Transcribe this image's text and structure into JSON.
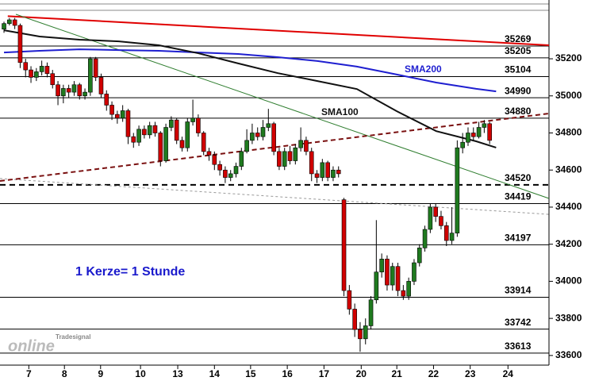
{
  "chart_data": {
    "type": "candlestick",
    "x": [
      0,
      1,
      2,
      3,
      4,
      5,
      6,
      7,
      8,
      9,
      10,
      11,
      12,
      13,
      14,
      15,
      16,
      17,
      18,
      19,
      20,
      21,
      22,
      23,
      24,
      25,
      26,
      27,
      28,
      29,
      30,
      31,
      32,
      33,
      34,
      35,
      36,
      37,
      38,
      39,
      40,
      41,
      42,
      43,
      44,
      45,
      46,
      47,
      48,
      49,
      50,
      51,
      52,
      53,
      54,
      55,
      56,
      57,
      58,
      59,
      60,
      61,
      62,
      63,
      64,
      65,
      66,
      67,
      68,
      69,
      70,
      71,
      72,
      73,
      74,
      75,
      76,
      77,
      78,
      79,
      80,
      81,
      82,
      83,
      84,
      85,
      86,
      87,
      88,
      89,
      90
    ],
    "open": [
      35360,
      35390,
      35410,
      35380,
      35180,
      35140,
      35100,
      35130,
      35160,
      35120,
      35060,
      35000,
      35040,
      35020,
      35060,
      35000,
      35020,
      35200,
      35100,
      35010,
      34950,
      34900,
      34880,
      34920,
      34780,
      34750,
      34820,
      34790,
      34840,
      34800,
      34650,
      34830,
      34870,
      34760,
      34720,
      34860,
      34880,
      34800,
      34700,
      34680,
      34630,
      34600,
      34560,
      34580,
      34620,
      34700,
      34760,
      34800,
      34780,
      34830,
      34850,
      34700,
      34620,
      34700,
      34650,
      34720,
      34760,
      34700,
      34580,
      34560,
      34640,
      34560,
      34600,
      34440,
      33950,
      33850,
      33740,
      33690,
      33760,
      33900,
      34050,
      34120,
      33980,
      34080,
      33950,
      33920,
      34000,
      34100,
      34180,
      34280,
      34400,
      34350,
      34300,
      34220,
      34260,
      34720,
      34750,
      34800,
      34780,
      34830,
      34850
    ],
    "high": [
      35400,
      35420,
      35420,
      35390,
      35200,
      35160,
      35150,
      35190,
      35180,
      35140,
      35080,
      35060,
      35060,
      35080,
      35070,
      35040,
      35210,
      35210,
      35120,
      35030,
      34970,
      34920,
      34950,
      34930,
      34800,
      34840,
      34840,
      34860,
      34860,
      34810,
      34850,
      34890,
      34880,
      34780,
      34880,
      34980,
      34900,
      34810,
      34720,
      34700,
      34650,
      34620,
      34600,
      34640,
      34720,
      34820,
      34850,
      34830,
      34870,
      34930,
      34860,
      34720,
      34720,
      34730,
      34740,
      34830,
      34780,
      34720,
      34600,
      34660,
      34650,
      34620,
      34620,
      34450,
      33980,
      33880,
      33780,
      33800,
      33920,
      34330,
      34150,
      34140,
      34100,
      34100,
      33980,
      34020,
      34120,
      34200,
      34300,
      34420,
      34420,
      34380,
      34320,
      34400,
      34760,
      34800,
      34830,
      34830,
      34860,
      34870,
      34860
    ],
    "low": [
      35340,
      35380,
      35360,
      35150,
      35100,
      35070,
      35080,
      35110,
      35100,
      35040,
      34950,
      34960,
      34990,
      35000,
      34980,
      34980,
      35000,
      35080,
      34990,
      34920,
      34870,
      34850,
      34860,
      34740,
      34720,
      34730,
      34770,
      34770,
      34780,
      34620,
      34640,
      34810,
      34740,
      34700,
      34700,
      34840,
      34780,
      34680,
      34650,
      34600,
      34570,
      34530,
      34540,
      34560,
      34600,
      34690,
      34740,
      34760,
      34760,
      34810,
      34680,
      34600,
      34600,
      34630,
      34630,
      34700,
      34680,
      34540,
      34530,
      34540,
      34540,
      34540,
      34560,
      33920,
      33820,
      33700,
      33620,
      33660,
      33740,
      33880,
      34020,
      33950,
      33950,
      33920,
      33900,
      33900,
      33980,
      34080,
      34160,
      34260,
      34320,
      34280,
      34190,
      34200,
      34240,
      34690,
      34730,
      34760,
      34770,
      34800,
      34740
    ],
    "close": [
      35390,
      35410,
      35380,
      35180,
      35140,
      35100,
      35130,
      35160,
      35120,
      35060,
      35000,
      35040,
      35020,
      35060,
      35000,
      35020,
      35200,
      35100,
      35010,
      34950,
      34900,
      34880,
      34920,
      34780,
      34750,
      34820,
      34790,
      34840,
      34800,
      34650,
      34830,
      34870,
      34760,
      34720,
      34860,
      34880,
      34800,
      34700,
      34680,
      34630,
      34600,
      34560,
      34580,
      34620,
      34700,
      34760,
      34800,
      34780,
      34830,
      34850,
      34700,
      34620,
      34700,
      34650,
      34720,
      34760,
      34700,
      34580,
      34560,
      34640,
      34560,
      34600,
      34580,
      33950,
      33850,
      33740,
      33690,
      33760,
      33900,
      34050,
      34120,
      33980,
      34080,
      33950,
      33920,
      34000,
      34100,
      34180,
      34280,
      34400,
      34350,
      34300,
      34220,
      34260,
      34720,
      34750,
      34800,
      34780,
      34830,
      34850,
      34760
    ],
    "up_color": "#1f7a1f",
    "down_color": "#d00000",
    "xlim": [
      -0.74,
      101
    ],
    "xticks": [
      {
        "value": 4.6,
        "label": "7"
      },
      {
        "value": 11.2,
        "label": "8"
      },
      {
        "value": 17.9,
        "label": "9"
      },
      {
        "value": 25.3,
        "label": "10"
      },
      {
        "value": 32.2,
        "label": "13"
      },
      {
        "value": 39.0,
        "label": "14"
      },
      {
        "value": 45.7,
        "label": "15"
      },
      {
        "value": 52.5,
        "label": "16"
      },
      {
        "value": 59.3,
        "label": "17"
      },
      {
        "value": 66.2,
        "label": "20"
      },
      {
        "value": 72.8,
        "label": "21"
      },
      {
        "value": 79.6,
        "label": "22"
      },
      {
        "value": 86.4,
        "label": "23"
      },
      {
        "value": 93.4,
        "label": "24"
      }
    ],
    "ylim": [
      33548,
      35517
    ],
    "yticks": [
      35200,
      35000,
      34800,
      34600,
      34400,
      34200,
      34000,
      33800,
      33600
    ],
    "levels": [
      35269,
      35205,
      35104,
      34990,
      34880,
      34520,
      34419,
      34197,
      33914,
      33742,
      33613
    ],
    "level_styles": [
      "solid",
      "solid",
      "solid",
      "solid",
      "solid",
      "dashed",
      "solid",
      "solid",
      "solid",
      "solid",
      "solid"
    ],
    "lines": [
      {
        "name": "SMA200",
        "color": "#1f1fd0",
        "x": [
          0,
          6.6,
          14,
          21.3,
          28.7,
          36,
          43.4,
          50.7,
          58.1,
          65.4,
          72.8,
          80.1,
          87.5,
          91.2
        ],
        "values": [
          35234,
          35243,
          35251,
          35247,
          35243,
          35234,
          35226,
          35209,
          35188,
          35158,
          35115,
          35072,
          35038,
          35024
        ]
      },
      {
        "name": "SMA100",
        "color": "#111111",
        "x": [
          0,
          6.6,
          14,
          21.3,
          28.7,
          36,
          43.4,
          50.7,
          58.1,
          65.4,
          72.8,
          80.1,
          87.5,
          91.2
        ],
        "values": [
          35354,
          35320,
          35303,
          35294,
          35273,
          35230,
          35175,
          35123,
          35080,
          35037,
          34917,
          34810,
          34755,
          34721
        ]
      }
    ],
    "trendlines": [
      {
        "color": "#e00000",
        "style": "solid",
        "x": [
          0.7,
          101
        ],
        "values": [
          35430,
          35273
        ]
      },
      {
        "color": "#2e7d2e",
        "style": "solid",
        "x": [
          2.2,
          101
        ],
        "values": [
          35440,
          34447
        ]
      },
      {
        "color": "#999999",
        "style": "dashed",
        "x": [
          -0.74,
          101
        ],
        "values": [
          34554,
          34361
        ]
      },
      {
        "color": "#7a1010",
        "style": "dashed",
        "x": [
          -0.74,
          101
        ],
        "values": [
          34541,
          34905
        ]
      }
    ],
    "annotation": "1 Kerze= 1 Stunde",
    "logo": [
      "Tradesignal",
      "online"
    ]
  }
}
